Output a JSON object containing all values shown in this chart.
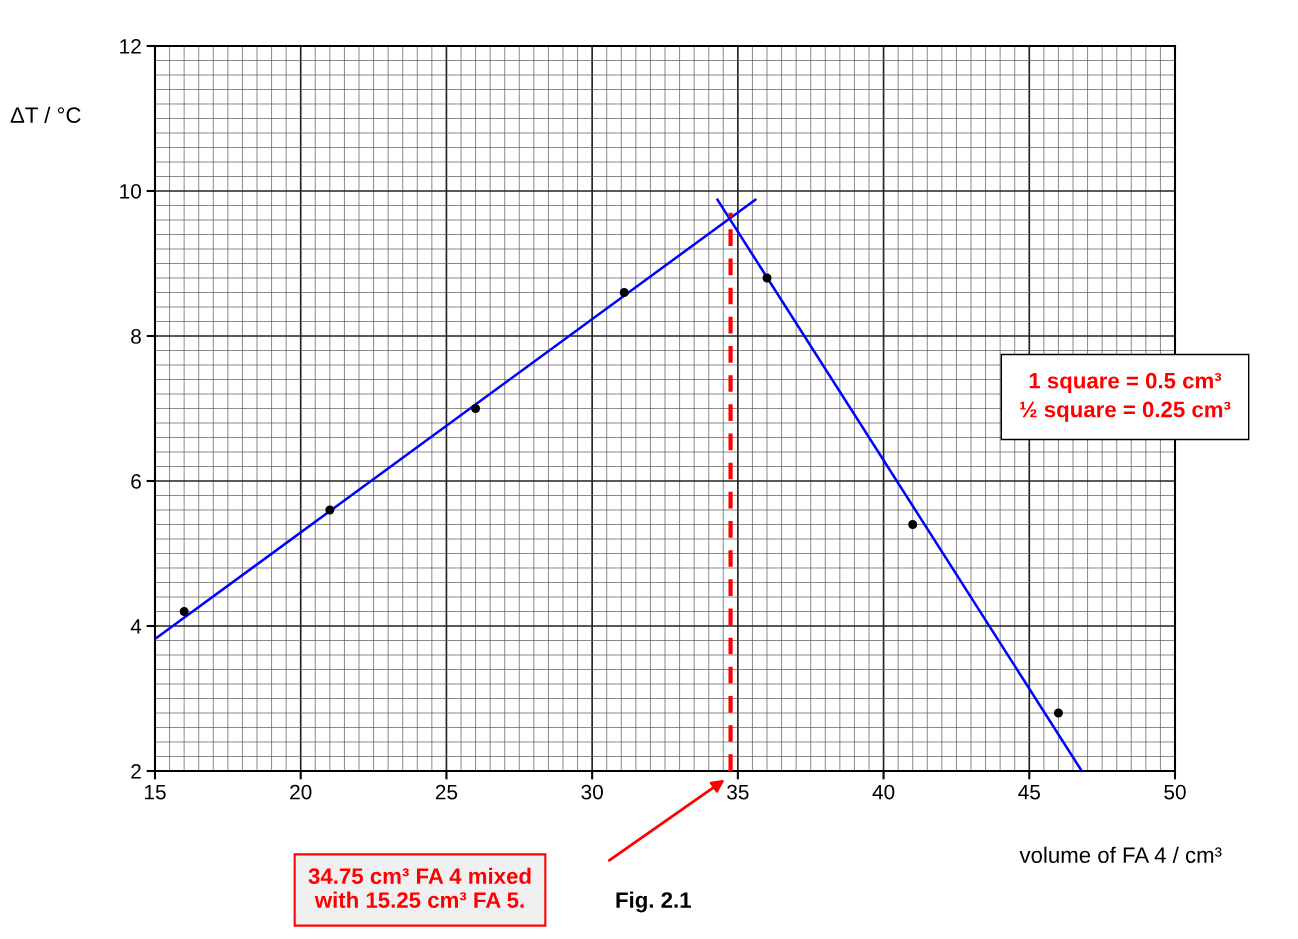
{
  "chart_data": {
    "type": "scatter",
    "xlabel": "volume of FA 4 / cm³",
    "ylabel": "ΔT / °C",
    "xlim": [
      15,
      50
    ],
    "ylim": [
      2,
      12
    ],
    "xticks": [
      15,
      20,
      25,
      30,
      35,
      40,
      45,
      50
    ],
    "yticks": [
      2,
      4,
      6,
      8,
      10,
      12
    ],
    "grid": true,
    "marker": "circle",
    "series": [
      {
        "color": "#000000",
        "x": [
          16,
          21,
          26,
          31.1,
          36,
          41,
          46
        ],
        "values": [
          4.2,
          5.6,
          7.0,
          8.6,
          8.8,
          5.4,
          2.8
        ]
      },
      {
        "type": "line",
        "color": "#0000ff",
        "marker": "none",
        "x": [
          15,
          35.6
        ],
        "values": [
          3.82,
          9.88
        ]
      },
      {
        "type": "line",
        "color": "#0000ff",
        "marker": "none",
        "x": [
          34.3,
          46.8
        ],
        "values": [
          9.88,
          2.0
        ]
      },
      {
        "type": "line",
        "color": "#ff0000",
        "marker": "none",
        "line_style": "dashed",
        "x": [
          34.75,
          34.75
        ],
        "values": [
          2.0,
          9.7
        ]
      }
    ],
    "annotations": [
      "34.75 cm³ FA 4 mixed\nwith 15.25 cm³ FA 5.",
      "1 square = 0.5 cm³\n½ square = 0.25 cm³",
      "Fig. 2.1"
    ]
  }
}
